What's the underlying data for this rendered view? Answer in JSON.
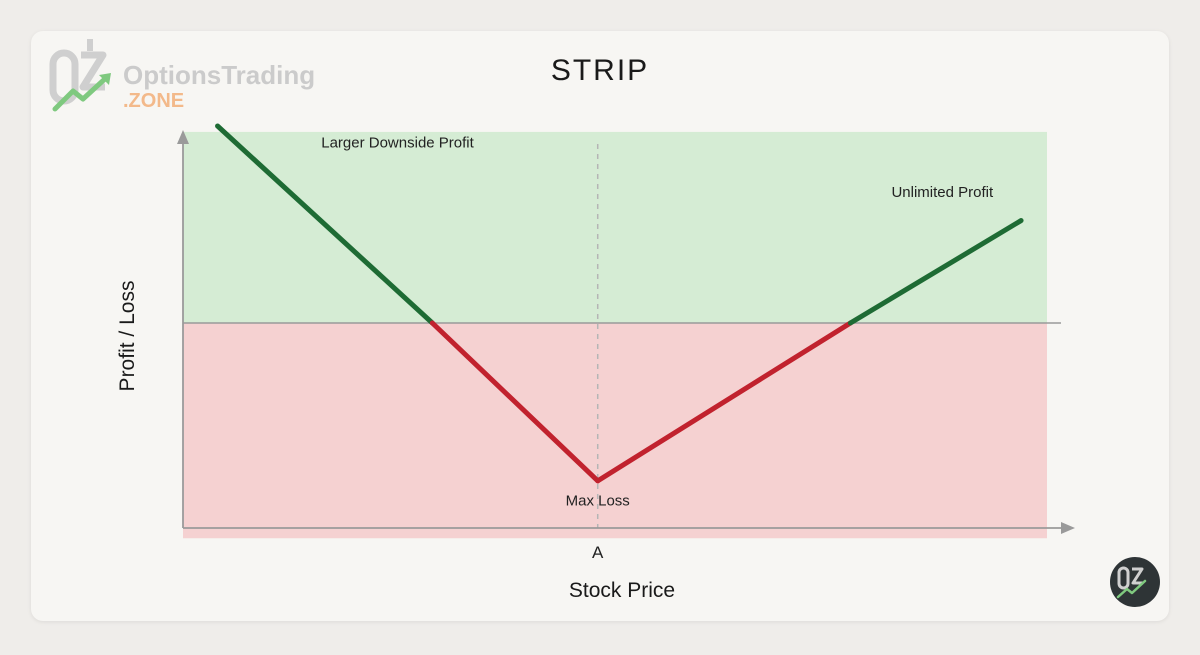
{
  "brand": {
    "name_line1": "OptionsTrading",
    "name_line2": ".ZONE",
    "badge_text": "OTZ",
    "colors": {
      "logo_gray": "#c9c9c9",
      "logo_green": "#7fc97f",
      "logo_orange": "#f3b98a",
      "badge_bg": "#2e3436"
    },
    "icons": [
      "logo-icon",
      "badge-logo-icon"
    ]
  },
  "chart_data": {
    "type": "line",
    "title": "STRIP",
    "xlabel": "Stock Price",
    "ylabel": "Profit / Loss",
    "x_ticks": [
      "A"
    ],
    "grid": false,
    "legend": "none",
    "xlim": [
      0,
      100
    ],
    "ylim": [
      -100,
      100
    ],
    "strike": 48,
    "breakeven": [
      29,
      77
    ],
    "series": [
      {
        "values": [
          {
            "x": 4,
            "y": 100
          },
          {
            "x": 48,
            "y": -77
          },
          {
            "x": 97,
            "y": 52
          }
        ]
      }
    ],
    "regions": [
      {
        "name": "profit",
        "y_from": 0,
        "y_to": 97,
        "color": "#d5ecd4"
      },
      {
        "name": "loss",
        "y_from": -105,
        "y_to": 0,
        "color": "#f5d1d1"
      }
    ],
    "colors": {
      "profit_line": "#1e6b34",
      "loss_line": "#c1222e",
      "axis": "#9a9a9a",
      "dashed": "#b5b5b5"
    },
    "annotations": [
      {
        "text": "Larger Downside Profit",
        "x": 16,
        "y": 89
      },
      {
        "text": "Unlimited Profit",
        "x": 82,
        "y": 64
      },
      {
        "text": "Max Loss",
        "x": 48,
        "y": -89
      }
    ]
  }
}
